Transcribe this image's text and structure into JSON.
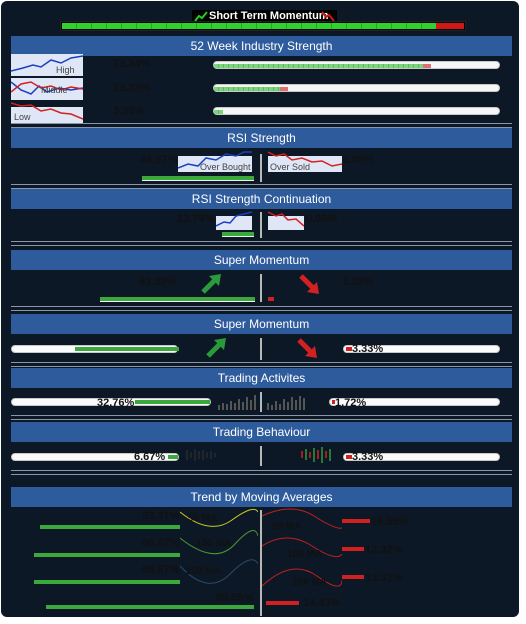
{
  "top_banner": {
    "title": "Short Term Momentum",
    "icon_up": "trend-up-icon",
    "icon_down": "trend-down-icon",
    "green_fraction": 0.93,
    "colors": {
      "green": "#22cc22",
      "red": "#d01818",
      "background": "#000000"
    }
  },
  "industry_strength": {
    "title": "52 Week Industry Strength",
    "rows": [
      {
        "label": "High",
        "pct": "73.34%",
        "value": 73.34
      },
      {
        "label": "Middle",
        "pct": "23.33%",
        "value": 23.33
      },
      {
        "label": "Low",
        "pct": "3.33%",
        "value": 3.33
      }
    ]
  },
  "rsi_strength": {
    "title": "RSI Strength",
    "overbought": {
      "label": "Over Bought",
      "pct": "46.67%",
      "value": 46.67
    },
    "oversold": {
      "label": "Over Sold",
      "pct": "0.00%",
      "value": 0.0
    }
  },
  "rsi_continuation": {
    "title": "RSI Strength Continuation",
    "left": {
      "pct": "13.79%",
      "value": 13.79
    },
    "right": {
      "pct": "0.00%",
      "value": 0.0
    }
  },
  "super_momentum_1": {
    "title": "Super Momentum",
    "left": {
      "pct": "63.33%",
      "value": 63.33,
      "icon": "arrow-up-icon"
    },
    "right": {
      "pct": "3.33%",
      "value": 3.33,
      "icon": "arrow-down-icon"
    }
  },
  "super_momentum_2": {
    "title": "Super Momentum",
    "left": {
      "pct": "63.33%",
      "value": 63.33,
      "icon": "arrow-up-icon"
    },
    "right": {
      "pct": "3.33%",
      "value": 3.33,
      "icon": "arrow-down-icon"
    }
  },
  "trading_activities": {
    "title": "Trading Activites",
    "left": {
      "pct": "32.76%",
      "value": 32.76,
      "icon": "volume-bars-icon"
    },
    "right": {
      "pct": "1.72%",
      "value": 1.72,
      "icon": "volume-bars-icon"
    }
  },
  "trading_behaviour": {
    "title": "Trading Behaviour",
    "left": {
      "pct": "6.67%",
      "value": 6.67,
      "icon": "candlestick-icon"
    },
    "right": {
      "pct": "3.33%",
      "value": 3.33,
      "icon": "candlestick-icon"
    }
  },
  "moving_averages": {
    "title": "Trend by Moving Averages",
    "left": [
      {
        "ma": "50 MA",
        "pct": "83.31%",
        "value": 83.31
      },
      {
        "ma": "150 MA",
        "pct": "86.67%",
        "value": 86.67
      },
      {
        "ma": "200 MA",
        "pct": "86.67%",
        "value": 86.67
      },
      {
        "ma": "",
        "pct": "85.55%",
        "value": 85.55
      }
    ],
    "right": [
      {
        "ma": "50 MA",
        "pct": "16.65%",
        "value": 16.65
      },
      {
        "ma": "150 MA",
        "pct": "13.32%",
        "value": 13.32
      },
      {
        "ma": "200 MA",
        "pct": "13.32%",
        "value": 13.32
      },
      {
        "ma": "",
        "pct": "14.43%",
        "value": 14.43
      }
    ]
  }
}
